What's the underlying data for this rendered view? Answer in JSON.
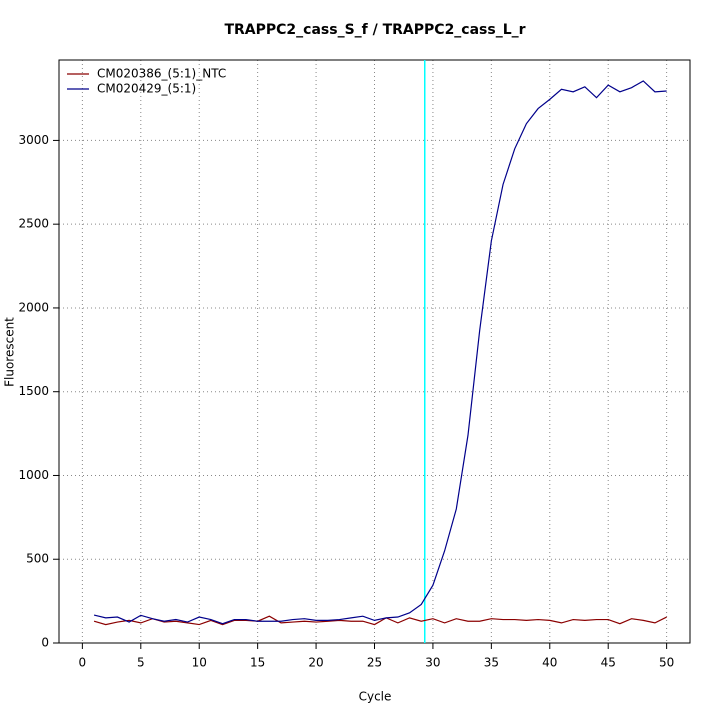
{
  "chart_data": {
    "type": "line",
    "title": "TRAPPC2_cass_S_f / TRAPPC2_cass_L_r",
    "x_label": "Cycle",
    "y_label": "Fluorescent",
    "x": [
      1,
      2,
      3,
      4,
      5,
      6,
      7,
      8,
      9,
      10,
      11,
      12,
      13,
      14,
      15,
      16,
      17,
      18,
      19,
      20,
      21,
      22,
      23,
      24,
      25,
      26,
      27,
      28,
      29,
      30,
      31,
      32,
      33,
      34,
      35,
      36,
      37,
      38,
      39,
      40,
      41,
      42,
      43,
      44,
      45,
      46,
      47,
      48,
      49,
      50
    ],
    "series": [
      {
        "name": "CM020386_(5:1)_NTC",
        "color": "#8b0000",
        "values": [
          130,
          110,
          125,
          135,
          120,
          145,
          125,
          130,
          120,
          110,
          135,
          110,
          135,
          135,
          130,
          160,
          120,
          125,
          130,
          125,
          130,
          135,
          130,
          130,
          110,
          150,
          120,
          150,
          130,
          145,
          120,
          145,
          130,
          130,
          145,
          140,
          140,
          135,
          140,
          135,
          120,
          140,
          135,
          140,
          140,
          115,
          145,
          135,
          120,
          155
        ]
      },
      {
        "name": "CM020429_(5:1)",
        "color": "#00008b",
        "values": [
          167,
          150,
          155,
          125,
          165,
          145,
          130,
          140,
          125,
          155,
          140,
          115,
          140,
          140,
          130,
          130,
          130,
          140,
          145,
          135,
          135,
          140,
          150,
          160,
          135,
          150,
          155,
          180,
          230,
          345,
          550,
          800,
          1240,
          1865,
          2400,
          2737,
          2950,
          3100,
          3190,
          3245,
          3305,
          3290,
          3320,
          3255,
          3330,
          3290,
          3315,
          3355,
          3290,
          3295
        ]
      }
    ],
    "threshold": {
      "x": 29.3,
      "color": "#00ffff"
    },
    "xlim": [
      -2,
      52
    ],
    "ylim": [
      0,
      3480
    ],
    "xticks": [
      0,
      5,
      10,
      15,
      20,
      25,
      30,
      35,
      40,
      45,
      50
    ],
    "yticks": [
      0,
      500,
      1000,
      1500,
      2000,
      2500,
      3000
    ],
    "grid": true,
    "legend": "top-left"
  }
}
